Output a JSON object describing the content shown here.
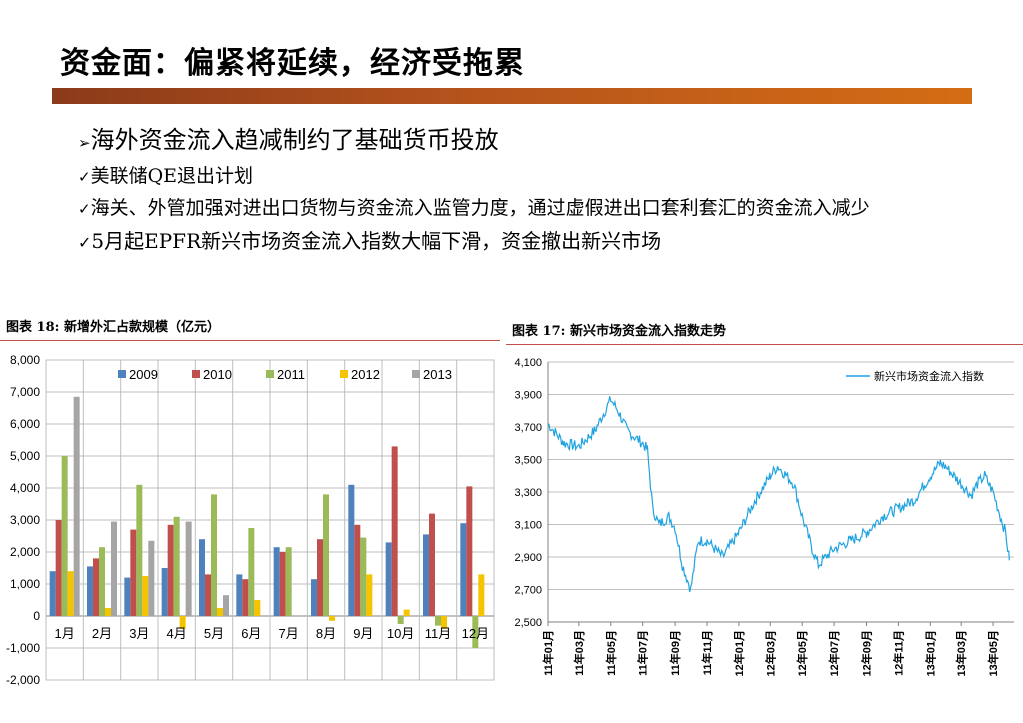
{
  "page": {
    "title": "资金面：偏紧将延续，经济受拖累",
    "bullets": [
      {
        "marker": "➢",
        "text": "海外资金流入趋减制约了基础货币投放",
        "level": 1
      },
      {
        "marker": "✓",
        "text": "美联储QE退出计划",
        "level": 2
      },
      {
        "marker": "✓",
        "text": "海关、外管加强对进出口货物与资金流入监管力度，通过虚假进出口套利套汇的资金流入减少",
        "level": 2
      },
      {
        "marker": "✓",
        "text": "5月起EPFR新兴市场资金流入指数大幅下滑，资金撤出新兴市场",
        "level": 3
      }
    ],
    "left_caption": "图表 18: 新增外汇占款规模（亿元）",
    "right_caption": "图表 17: 新兴市场资金流入指数走势"
  },
  "chart_data": [
    {
      "type": "bar",
      "categories": [
        "1月",
        "2月",
        "3月",
        "4月",
        "5月",
        "6月",
        "7月",
        "8月",
        "9月",
        "10月",
        "11月",
        "12月"
      ],
      "series": [
        {
          "name": "2009",
          "color": "#4f81bd",
          "values": [
            1400,
            1550,
            1200,
            1500,
            2400,
            1300,
            2150,
            1150,
            4100,
            2300,
            2550,
            2900
          ]
        },
        {
          "name": "2010",
          "color": "#c0504d",
          "values": [
            3000,
            1800,
            2700,
            2850,
            1300,
            1150,
            2000,
            2400,
            2850,
            5300,
            3200,
            4050
          ]
        },
        {
          "name": "2011",
          "color": "#9bbb59",
          "values": [
            5000,
            2150,
            4100,
            3100,
            3800,
            2750,
            2150,
            3800,
            2450,
            -250,
            -300,
            -1000
          ]
        },
        {
          "name": "2012",
          "color": "#f5c400",
          "values": [
            1400,
            250,
            1250,
            -400,
            250,
            500,
            null,
            -150,
            1300,
            200,
            -400,
            1300
          ]
        },
        {
          "name": "2013",
          "color": "#a5a5a5",
          "values": [
            6850,
            2950,
            2350,
            2950,
            650,
            null,
            null,
            null,
            null,
            null,
            null,
            null
          ]
        }
      ],
      "ylim": [
        -2000,
        8000
      ],
      "yticks": [
        "-2,000",
        "-1,000",
        "0",
        "1,000",
        "2,000",
        "3,000",
        "4,000",
        "5,000",
        "6,000",
        "7,000",
        "8,000"
      ],
      "legend_position": "top",
      "grid": true
    },
    {
      "type": "line",
      "series": [
        {
          "name": "新兴市场资金流入指数",
          "color": "#1fa3e0"
        }
      ],
      "x_labels": [
        "11年01月",
        "11年03月",
        "11年05月",
        "11年07月",
        "11年09月",
        "11年11月",
        "12年01月",
        "12年03月",
        "12年05月",
        "12年07月",
        "12年09月",
        "12年11月",
        "13年01月",
        "13年03月",
        "13年05月"
      ],
      "anchors": [
        [
          "2011-01",
          3720
        ],
        [
          "2011-02",
          3600
        ],
        [
          "2011-03",
          3580
        ],
        [
          "2011-04",
          3680
        ],
        [
          "2011-05",
          3870
        ],
        [
          "2011-05-15",
          3800
        ],
        [
          "2011-06",
          3680
        ],
        [
          "2011-06-15",
          3640
        ],
        [
          "2011-07",
          3600
        ],
        [
          "2011-07-10",
          3560
        ],
        [
          "2011-07-20",
          3200
        ],
        [
          "2011-08",
          3100
        ],
        [
          "2011-08-20",
          3150
        ],
        [
          "2011-09",
          3080
        ],
        [
          "2011-09-15",
          2850
        ],
        [
          "2011-10",
          2700
        ],
        [
          "2011-10-15",
          3000
        ],
        [
          "2011-11",
          3000
        ],
        [
          "2011-12",
          2900
        ],
        [
          "2012-01",
          3050
        ],
        [
          "2012-02",
          3250
        ],
        [
          "2012-03",
          3400
        ],
        [
          "2012-03-15",
          3460
        ],
        [
          "2012-04",
          3400
        ],
        [
          "2012-04-15",
          3350
        ],
        [
          "2012-05",
          3150
        ],
        [
          "2012-05-20",
          2950
        ],
        [
          "2012-06",
          2850
        ],
        [
          "2012-06-15",
          2900
        ],
        [
          "2012-07",
          2950
        ],
        [
          "2012-08",
          3000
        ],
        [
          "2012-09",
          3050
        ],
        [
          "2012-10",
          3150
        ],
        [
          "2012-11",
          3200
        ],
        [
          "2012-12",
          3250
        ],
        [
          "2013-01",
          3400
        ],
        [
          "2013-01-20",
          3480
        ],
        [
          "2013-02",
          3450
        ],
        [
          "2013-03",
          3350
        ],
        [
          "2013-03-20",
          3280
        ],
        [
          "2013-04",
          3350
        ],
        [
          "2013-04-15",
          3400
        ],
        [
          "2013-05",
          3300
        ],
        [
          "2013-05-15",
          3150
        ],
        [
          "2013-05-25",
          3050
        ],
        [
          "2013-06",
          2880
        ]
      ],
      "ylim": [
        2500,
        4100
      ],
      "yticks": [
        "2,500",
        "2,700",
        "2,900",
        "3,100",
        "3,300",
        "3,500",
        "3,700",
        "3,900",
        "4,100"
      ],
      "legend_position": "top-right",
      "grid": true
    }
  ]
}
